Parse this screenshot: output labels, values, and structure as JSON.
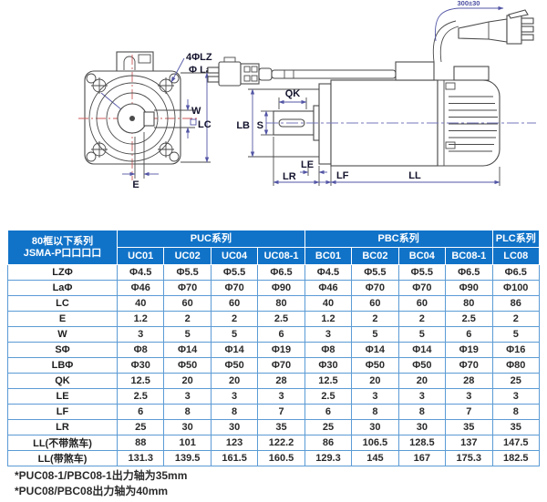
{
  "diagram": {
    "front_view": {
      "labels": {
        "holes": "4ΦLZ",
        "pilot": "Φ La",
        "w": "W",
        "lc": "LC",
        "e": "E"
      }
    },
    "side_view": {
      "labels": {
        "cable_length": "300±30",
        "qk": "QK",
        "s": "S",
        "lb": "LB",
        "le": "LE",
        "lr": "LR",
        "lf": "LF",
        "ll": "LL"
      }
    }
  },
  "table": {
    "corner_header": [
      "80框以下系列",
      "JSMA-P口口口口"
    ],
    "groups": [
      {
        "label": "PUC系列",
        "span": 4
      },
      {
        "label": "PBC系列",
        "span": 4
      },
      {
        "label": "PLC系列",
        "span": 1
      }
    ],
    "columns": [
      "UC01",
      "UC02",
      "UC04",
      "UC08-1",
      "BC01",
      "BC02",
      "BC04",
      "BC08-1",
      "LC08"
    ],
    "rows": [
      {
        "label": "LZΦ",
        "values": [
          "Φ4.5",
          "Φ5.5",
          "Φ5.5",
          "Φ6.5",
          "Φ4.5",
          "Φ5.5",
          "Φ5.5",
          "Φ6.5",
          "Φ6.5"
        ]
      },
      {
        "label": "LaΦ",
        "values": [
          "Φ46",
          "Φ70",
          "Φ70",
          "Φ90",
          "Φ46",
          "Φ70",
          "Φ70",
          "Φ90",
          "Φ100"
        ]
      },
      {
        "label": "LC",
        "values": [
          "40",
          "60",
          "60",
          "80",
          "40",
          "60",
          "60",
          "80",
          "86"
        ]
      },
      {
        "label": "E",
        "values": [
          "1.2",
          "2",
          "2",
          "2.5",
          "1.2",
          "2",
          "2",
          "2.5",
          "2"
        ]
      },
      {
        "label": "W",
        "values": [
          "3",
          "5",
          "5",
          "6",
          "3",
          "5",
          "5",
          "6",
          "5"
        ]
      },
      {
        "label": "SΦ",
        "values": [
          "Φ8",
          "Φ14",
          "Φ14",
          "Φ19",
          "Φ8",
          "Φ14",
          "Φ14",
          "Φ19",
          "Φ16"
        ]
      },
      {
        "label": "LBΦ",
        "values": [
          "Φ30",
          "Φ50",
          "Φ50",
          "Φ70",
          "Φ30",
          "Φ50",
          "Φ50",
          "Φ70",
          "Φ80"
        ]
      },
      {
        "label": "QK",
        "values": [
          "12.5",
          "20",
          "20",
          "28",
          "12.5",
          "20",
          "20",
          "28",
          "25"
        ]
      },
      {
        "label": "LE",
        "values": [
          "2.5",
          "3",
          "3",
          "3",
          "2.5",
          "3",
          "3",
          "3",
          "3"
        ]
      },
      {
        "label": "LF",
        "values": [
          "6",
          "8",
          "8",
          "7",
          "6",
          "8",
          "8",
          "7",
          "8"
        ]
      },
      {
        "label": "LR",
        "values": [
          "25",
          "30",
          "30",
          "35",
          "25",
          "30",
          "30",
          "35",
          "35"
        ]
      },
      {
        "label": "LL(不带煞车)",
        "values": [
          "88",
          "101",
          "123",
          "122.2",
          "86",
          "106.5",
          "128.5",
          "137",
          "147.5"
        ]
      },
      {
        "label": "LL(带煞车)",
        "values": [
          "131.3",
          "139.5",
          "161.5",
          "160.5",
          "129.3",
          "145",
          "167",
          "175.3",
          "182.5"
        ]
      }
    ]
  },
  "notes": [
    "*PUC08-1/PBC08-1出力轴为35mm",
    "*PUC08/PBC08出力轴为40mm"
  ],
  "colors": {
    "header_blue": "#1173c8",
    "cell_border_blue": "#5b9bd5",
    "dimension_blue": "#5356a5",
    "centerline_red": "#cc5a5a",
    "text_dark": "#14142e"
  }
}
